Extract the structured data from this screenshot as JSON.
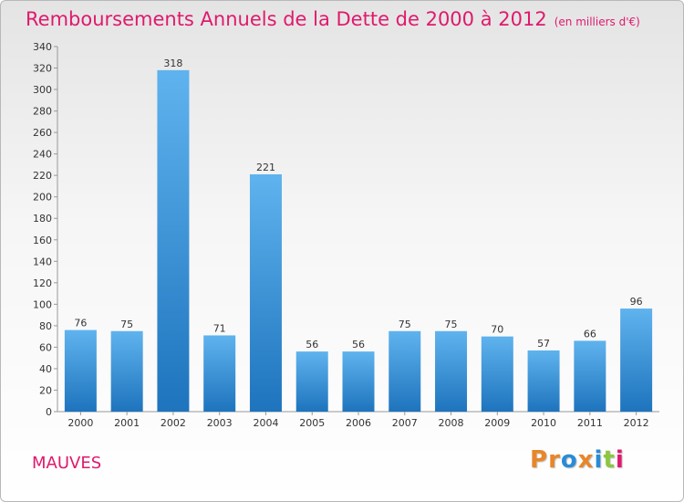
{
  "header": {
    "title": "Remboursements Annuels de la Dette de 2000 à 2012",
    "unit": "(en milliers d'€)"
  },
  "footer": {
    "commune": "MAUVES",
    "logo_text": "Proxiti",
    "logo_colors": [
      "#e8862a",
      "#e8862a",
      "#2a8bd6",
      "#e8862a",
      "#2a8bd6",
      "#8cc63f",
      "#e0196d"
    ]
  },
  "colors": {
    "title": "#e0196d",
    "bar_light": "#5fb3ee",
    "bar_dark": "#1e74bd"
  },
  "chart_data": {
    "type": "bar",
    "title": "Remboursements Annuels de la Dette de 2000 à 2012",
    "categories": [
      "2000",
      "2001",
      "2002",
      "2003",
      "2004",
      "2005",
      "2006",
      "2007",
      "2008",
      "2009",
      "2010",
      "2011",
      "2012"
    ],
    "values": [
      76,
      75,
      318,
      71,
      221,
      56,
      56,
      75,
      75,
      70,
      57,
      66,
      96
    ],
    "ylim": [
      0,
      340
    ],
    "yticks": [
      0,
      20,
      40,
      60,
      80,
      100,
      120,
      140,
      160,
      180,
      200,
      220,
      240,
      260,
      280,
      300,
      320,
      340
    ],
    "grid": false,
    "data_labels": true
  }
}
